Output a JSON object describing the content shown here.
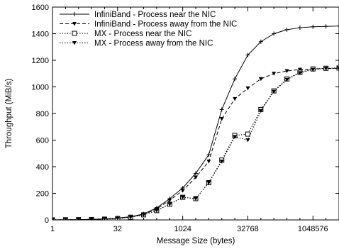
{
  "chart_data": {
    "type": "line",
    "title": "",
    "xlabel": "Message Size (bytes)",
    "ylabel": "Throughput (MiB/s)",
    "x_scale": "log2",
    "x_ticks": [
      1,
      32,
      1024,
      32768,
      1048576
    ],
    "x_tick_labels": [
      "1",
      "32",
      "1024",
      "32768",
      "1048576"
    ],
    "xlim": [
      1,
      4194304
    ],
    "ylim": [
      0,
      1600
    ],
    "y_ticks": [
      0,
      200,
      400,
      600,
      800,
      1000,
      1200,
      1400,
      1600
    ],
    "y_tick_labels": [
      "0",
      "200",
      "400",
      "600",
      "800",
      "1000",
      "1200",
      "1400",
      "1600"
    ],
    "grid": false,
    "legend_position": "top-left",
    "x": [
      1,
      2,
      4,
      8,
      16,
      32,
      64,
      128,
      256,
      512,
      1024,
      2048,
      4096,
      8192,
      16384,
      32768,
      65536,
      131072,
      262144,
      524288,
      1048576,
      2097152,
      4194304
    ],
    "series": [
      {
        "name": "InfiniBand - Process near the NIC",
        "line_style": "solid",
        "marker": "plus",
        "color": "#000000",
        "values": [
          0.5,
          1,
          2,
          4,
          8,
          14,
          24,
          45,
          90,
          160,
          240,
          350,
          490,
          830,
          1060,
          1240,
          1340,
          1400,
          1430,
          1445,
          1452,
          1455,
          1458
        ]
      },
      {
        "name": "InfiniBand - Process away from the NIC",
        "line_style": "dashed",
        "marker": "triangle-down",
        "color": "#000000",
        "values": [
          0.5,
          1,
          2,
          4,
          8,
          13,
          22,
          42,
          82,
          148,
          220,
          320,
          440,
          760,
          910,
          990,
          1060,
          1100,
          1120,
          1130,
          1135,
          1138,
          1140
        ]
      },
      {
        "name": "MX - Process near the NIC",
        "line_style": "dotted",
        "marker": "square",
        "color": "#000000",
        "values": [
          0.5,
          1,
          2,
          3,
          6,
          10,
          20,
          38,
          70,
          118,
          170,
          160,
          280,
          450,
          635,
          645,
          830,
          970,
          1060,
          1110,
          1135,
          1140,
          1142
        ]
      },
      {
        "name": "MX - Process away from the NIC",
        "line_style": "dotted",
        "marker": "triangle-down",
        "color": "#000000",
        "values": [
          0.5,
          1,
          2,
          3,
          6,
          10,
          20,
          38,
          70,
          118,
          170,
          160,
          280,
          440,
          625,
          600,
          820,
          965,
          1055,
          1105,
          1130,
          1138,
          1140
        ]
      }
    ]
  }
}
